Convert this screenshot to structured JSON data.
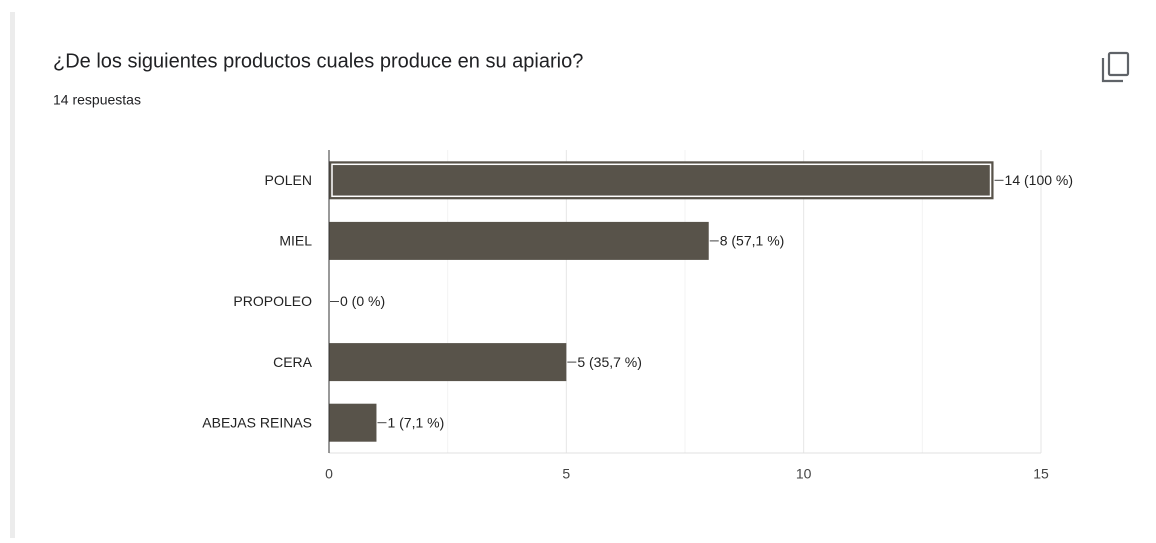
{
  "chart_data": {
    "type": "hbar",
    "title": "¿De los siguientes productos cuales produce en su apiario?",
    "subtitle": "14 respuestas",
    "categories": [
      "POLEN",
      "MIEL",
      "PROPOLEO",
      "CERA",
      "ABEJAS REINAS"
    ],
    "values": [
      14,
      8,
      0,
      5,
      1
    ],
    "value_labels": [
      "14 (100 %)",
      "8 (57,1 %)",
      "0 (0 %)",
      "5 (35,7 %)",
      "1 (7,1 %)"
    ],
    "color": "#58534a",
    "xlim": [
      0,
      15
    ],
    "xticks": [
      0,
      5,
      10,
      15
    ],
    "minor_xticks": [
      2.5,
      7.5,
      12.5
    ],
    "grid": true,
    "highlighted_category": "POLEN"
  }
}
